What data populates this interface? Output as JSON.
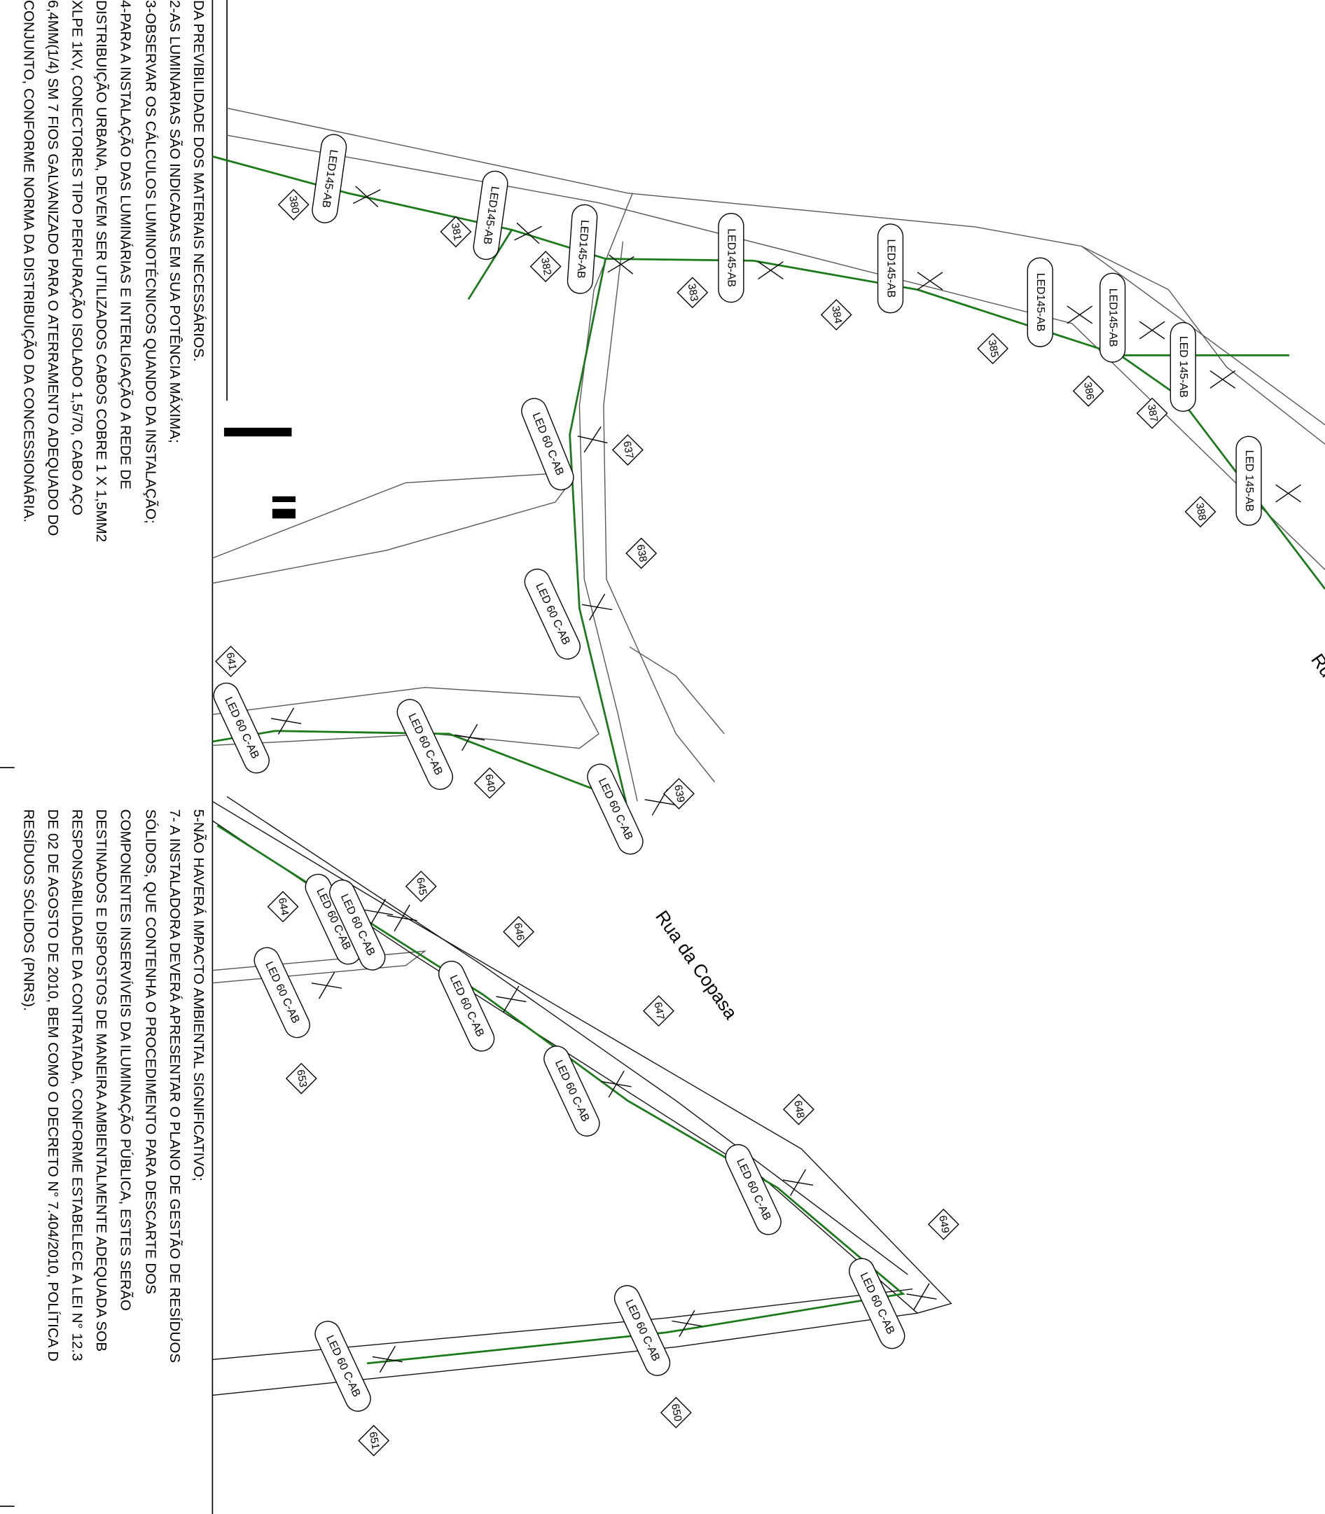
{
  "notes_top": [
    "DA PREVIBILIDADE DOS MATERIAIS NECESSÁRIOS.",
    "2-AS LUMINARIAS SÃO INDICADAS EM SUA POTÊNCIA MÁXIMA;",
    "3-OBSERVAR OS CÁLCULOS LUMINOTÉCNICOS QUANDO DA INSTALAÇÃO;",
    "4-PARA A INSTALAÇÃO DAS LUMINÁRIAS E  INTERLIGAÇÃO A REDE DE",
    "DISTRIBUIÇÃO URBANA, DEVEM SER UTILIZADOS  CABOS COBRE 1 X 1,5MM2",
    "XLPE 1KV, CONECTORES TIPO PERFURAÇÃO ISOLADO 1,5/70, CABO AÇO",
    "6,4MM(1/4) SM 7 FIOS GALVANIZADO PARA O ATERRAMENTO ADEQUADO DO",
    "CONJUNTO, CONFORME NORMA DA DISTRIBUIÇÃO DA CONCESSIONÁRIA."
  ],
  "notes_bottom": [
    "5-NÃO HAVERÁ IMPACTO AMBIENTAL SIGNIFICATIVO;",
    "7- A INSTALADORA DEVERÁ APRESENTAR O PLANO DE GESTÃO DE RESÍDUOS",
    "SÓLIDOS, QUE CONTENHA O PROCEDIMENTO PARA DESCARTE DOS",
    "COMPONENTES INSERVÍVEIS DA ILUMINAÇÃO PÚBLICA, ESTES SERÃO",
    "DESTINADOS E DISPOSTOS DE MANEIRA AMBIENTALMENTE ADEQUADA SOB",
    "RESPONSABILIDADE DA CONTRATADA, CONFORME ESTABELECE A LEI N° 12.3",
    "DE 02 DE AGOSTO DE 2010, BEM COMO O DECRETO N° 7.404/2010,  POLÍTICA D",
    "RESÍDUOS SÓLIDOS (PNRS)."
  ],
  "luminaire_labels": [
    "LED145-AB",
    "LED145-AB",
    "LED145-AB",
    "LED145-AB",
    "LED145-AB",
    "LED145-AB",
    "LED145-AB",
    "LED 145-AB",
    "LED 145-AB",
    "LED 60 C-AB",
    "LED 60 C-AB",
    "LED 60 C-AB",
    "LED 60 C-AB",
    "LED 60 C-AB",
    "LED 60 C-AB",
    "LED 60 C-AB",
    "LED 60 C-AB",
    "LED 60 C-AB",
    "LED 60 C-AB",
    "LED 60 C-AB",
    "LED 60 C-AB",
    "LED 60 C-AB",
    "LED 60 C-AB"
  ],
  "pole_numbers": [
    "380",
    "381",
    "382",
    "383",
    "384",
    "385",
    "386",
    "387",
    "388",
    "637",
    "638",
    "641",
    "640",
    "639",
    "645",
    "644",
    "646",
    "647",
    "648",
    "649",
    "653",
    "650",
    "651"
  ],
  "streets": [
    "Rua da Copasa",
    "Ru"
  ]
}
